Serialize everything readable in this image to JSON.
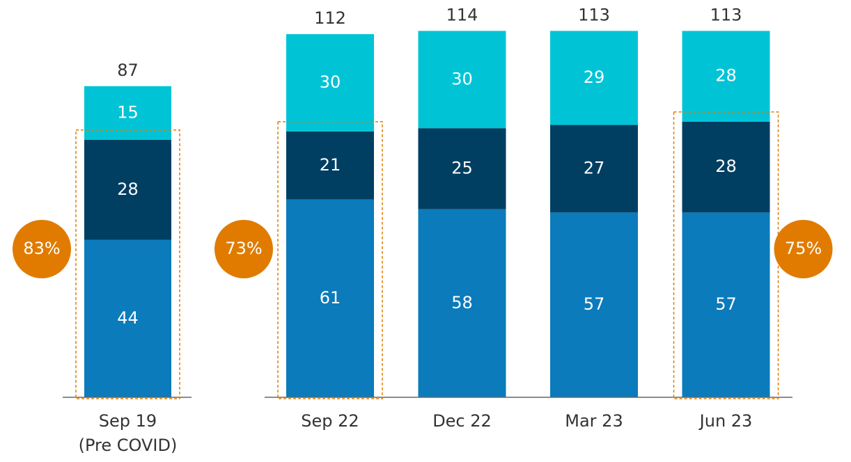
{
  "chart_data": [
    {
      "type": "stacked_bar",
      "categories": [
        [
          "Sep 19",
          "(Pre COVID)"
        ]
      ],
      "series": [
        {
          "color": "#0b7bbb",
          "values": [
            44
          ]
        },
        {
          "color": "#003f62",
          "values": [
            28
          ]
        },
        {
          "color": "#00c4d6",
          "values": [
            15
          ]
        }
      ],
      "totals": [
        87
      ],
      "ylim": [
        0,
        100
      ],
      "highlights": [
        {
          "category_index": 0,
          "value": 83,
          "label": "83%"
        }
      ],
      "highlight_color": "#e07b00"
    },
    {
      "type": "stacked_bar",
      "categories": [
        [
          "Sep 22"
        ],
        [
          "Dec 22"
        ],
        [
          "Mar 23"
        ],
        [
          "Jun 23"
        ]
      ],
      "series": [
        {
          "color": "#0b7bbb",
          "values": [
            61,
            58,
            57,
            57
          ]
        },
        {
          "color": "#003f62",
          "values": [
            21,
            25,
            27,
            28
          ]
        },
        {
          "color": "#00c4d6",
          "values": [
            30,
            30,
            29,
            28
          ]
        }
      ],
      "totals": [
        112,
        114,
        113,
        113
      ],
      "ylim": [
        0,
        120
      ],
      "highlights": [
        {
          "category_index": 0,
          "value": 73,
          "label": "73%"
        },
        {
          "category_index": 3,
          "value": 75,
          "label": "75%"
        }
      ],
      "highlight_color": "#e07b00"
    }
  ]
}
